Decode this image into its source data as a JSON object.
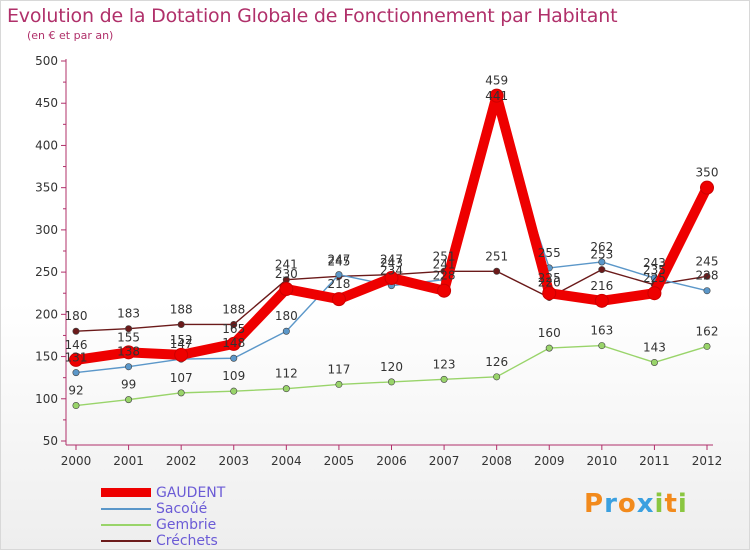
{
  "chart_data": {
    "type": "line",
    "title": "Evolution de la Dotation Globale de Fonctionnement par Habitant",
    "subtitle": "(en € et par an)",
    "xlabel": "",
    "ylabel": "",
    "categories": [
      "2000",
      "2001",
      "2002",
      "2003",
      "2004",
      "2005",
      "2006",
      "2007",
      "2008",
      "2009",
      "2010",
      "2011",
      "2012"
    ],
    "ylim": [
      50,
      500
    ],
    "yticks": [
      50,
      100,
      150,
      200,
      250,
      300,
      350,
      400,
      450,
      500
    ],
    "series": [
      {
        "name": "Créchets",
        "color": "#6b1a1a",
        "values": [
          180,
          183,
          188,
          188,
          241,
          245,
          247,
          251,
          251,
          220,
          253,
          235,
          245
        ]
      },
      {
        "name": "Gembrie",
        "color": "#99d46a",
        "values": [
          92,
          99,
          107,
          109,
          112,
          117,
          120,
          123,
          126,
          160,
          163,
          143,
          162
        ]
      },
      {
        "name": "Sacoûé",
        "color": "#5b97c9",
        "values": [
          131,
          138,
          147,
          148,
          180,
          247,
          234,
          241,
          441,
          255,
          262,
          243,
          228
        ]
      },
      {
        "name": "GAUDENT",
        "color": "#ee0000",
        "values": [
          146,
          155,
          152,
          165,
          230,
          218,
          243,
          228,
          459,
          225,
          216,
          225,
          350
        ]
      }
    ],
    "legend": [
      "GAUDENT",
      "Sacoûé",
      "Gembrie",
      "Créchets"
    ],
    "legend_position": "bottom-left"
  },
  "logo": {
    "parts": [
      "P",
      "r",
      "o",
      "x",
      "i",
      "t",
      "i"
    ],
    "colors": [
      "#f28a1c",
      "#3aa0e0",
      "#f28a1c",
      "#3aa0e0",
      "#8ac640",
      "#f28a1c",
      "#8ac640"
    ]
  }
}
